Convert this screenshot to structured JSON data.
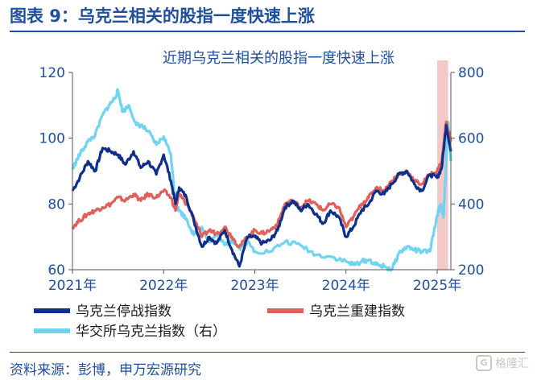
{
  "figure": {
    "title": "图表 9：乌克兰相关的股指一度快速上涨",
    "source": "资料来源：彭博，申万宏源研究",
    "watermark": "格隆汇"
  },
  "colors": {
    "primary_blue": "#1f4e9c",
    "series_war": "#0e2f8a",
    "series_rebuild": "#e0605c",
    "series_exchange": "#6fd3f2",
    "highlight": "#f3c9c8"
  },
  "chart_data": {
    "type": "line",
    "title": "近期乌克兰相关的股指一度快速上涨",
    "x_ticks": [
      "2021年",
      "2022年",
      "2023年",
      "2024年",
      "2025年"
    ],
    "xlim": [
      2021.0,
      2025.15
    ],
    "left_axis": {
      "ticks": [
        "60",
        "80",
        "100",
        "120"
      ],
      "ylim": [
        60,
        120
      ]
    },
    "right_axis": {
      "ticks": [
        "200",
        "400",
        "600",
        "800"
      ],
      "ylim": [
        200,
        800
      ],
      "label": "右"
    },
    "highlight_band": [
      2025.0,
      2025.12
    ],
    "series": [
      {
        "name": "乌克兰停战指数",
        "axis": "left",
        "x": [
          2021.0,
          2021.08,
          2021.17,
          2021.25,
          2021.33,
          2021.42,
          2021.5,
          2021.58,
          2021.67,
          2021.75,
          2021.83,
          2021.92,
          2022.0,
          2022.08,
          2022.13,
          2022.17,
          2022.25,
          2022.33,
          2022.42,
          2022.5,
          2022.58,
          2022.67,
          2022.75,
          2022.83,
          2022.92,
          2023.0,
          2023.08,
          2023.17,
          2023.25,
          2023.33,
          2023.42,
          2023.5,
          2023.58,
          2023.67,
          2023.75,
          2023.83,
          2023.92,
          2024.0,
          2024.08,
          2024.17,
          2024.25,
          2024.33,
          2024.42,
          2024.5,
          2024.58,
          2024.67,
          2024.75,
          2024.83,
          2024.92,
          2025.0,
          2025.05,
          2025.1,
          2025.15
        ],
        "values": [
          84,
          88,
          93,
          90,
          97,
          96,
          95,
          92,
          96,
          91,
          93,
          89,
          95,
          87,
          80,
          85,
          82,
          75,
          67,
          70,
          68,
          72,
          66,
          61,
          70,
          70,
          68,
          69,
          72,
          79,
          81,
          78,
          80,
          77,
          74,
          78,
          76,
          70,
          73,
          78,
          80,
          84,
          83,
          86,
          89,
          90,
          86,
          84,
          89,
          88,
          91,
          104,
          96
        ]
      },
      {
        "name": "乌克兰重建指数",
        "axis": "left",
        "x": [
          2021.0,
          2021.08,
          2021.17,
          2021.25,
          2021.33,
          2021.42,
          2021.5,
          2021.58,
          2021.67,
          2021.75,
          2021.83,
          2021.92,
          2022.0,
          2022.08,
          2022.13,
          2022.17,
          2022.25,
          2022.33,
          2022.42,
          2022.5,
          2022.58,
          2022.67,
          2022.75,
          2022.83,
          2022.92,
          2023.0,
          2023.08,
          2023.17,
          2023.25,
          2023.33,
          2023.42,
          2023.5,
          2023.58,
          2023.67,
          2023.75,
          2023.83,
          2023.92,
          2024.0,
          2024.08,
          2024.17,
          2024.25,
          2024.33,
          2024.42,
          2024.5,
          2024.58,
          2024.67,
          2024.75,
          2024.83,
          2024.92,
          2025.0,
          2025.05,
          2025.1,
          2025.15
        ],
        "values": [
          73,
          75,
          77,
          78,
          79,
          80,
          82,
          81,
          83,
          81,
          83,
          82,
          84,
          82,
          78,
          83,
          80,
          76,
          70,
          72,
          71,
          73,
          70,
          67,
          70,
          72,
          71,
          72,
          74,
          80,
          81,
          79,
          81,
          80,
          78,
          80,
          79,
          73,
          76,
          80,
          82,
          85,
          84,
          87,
          89,
          90,
          87,
          86,
          89,
          90,
          93,
          105,
          99
        ]
      },
      {
        "name": "华交所乌克兰指数（右）",
        "axis": "right",
        "x": [
          2021.0,
          2021.05,
          2021.1,
          2021.17,
          2021.25,
          2021.33,
          2021.4,
          2021.46,
          2021.5,
          2021.55,
          2021.62,
          2021.7,
          2021.75,
          2021.83,
          2021.92,
          2022.0,
          2022.08,
          2022.13,
          2022.17,
          2022.25,
          2022.33,
          2022.42,
          2022.5,
          2022.58,
          2022.67,
          2022.75,
          2022.83,
          2022.92,
          2023.0,
          2023.17,
          2023.33,
          2023.5,
          2023.67,
          2023.83,
          2024.0,
          2024.08,
          2024.17,
          2024.25,
          2024.33,
          2024.42,
          2024.5,
          2024.58,
          2024.67,
          2024.75,
          2024.83,
          2024.92,
          2025.0,
          2025.04,
          2025.07,
          2025.1,
          2025.12,
          2025.15
        ],
        "values": [
          505,
          535,
          560,
          590,
          610,
          670,
          700,
          720,
          745,
          680,
          700,
          640,
          640,
          620,
          580,
          605,
          550,
          400,
          380,
          355,
          305,
          330,
          285,
          305,
          275,
          290,
          265,
          285,
          255,
          255,
          285,
          275,
          245,
          240,
          225,
          215,
          225,
          230,
          215,
          210,
          200,
          250,
          270,
          260,
          255,
          255,
          365,
          400,
          360,
          530,
          650,
          530
        ]
      }
    ]
  }
}
